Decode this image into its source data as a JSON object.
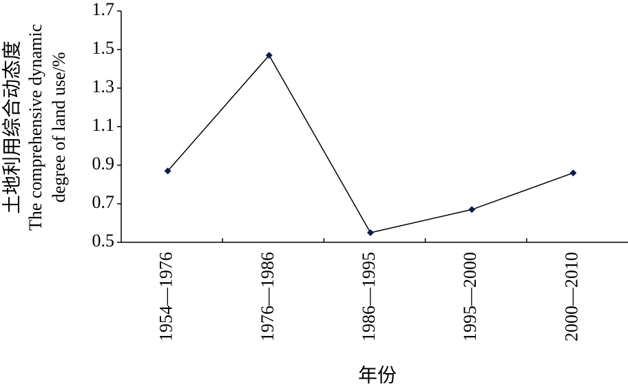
{
  "chart_data": {
    "type": "line",
    "ylabel": [
      "土地利用综合动态度",
      "The comprehensive dynamic",
      "degree of land use/%"
    ],
    "xlabel": "年份",
    "categories": [
      "1954—1976",
      "1976—1986",
      "1986—1995",
      "1995—2000",
      "2000—2010"
    ],
    "series": [
      {
        "color": "#000000",
        "marker_color": "#0d1a4a",
        "values": [
          0.87,
          1.47,
          0.55,
          0.67,
          0.86
        ]
      }
    ],
    "ylim": [
      0.5,
      1.7
    ],
    "yticks": [
      0.5,
      0.7,
      0.9,
      1.1,
      1.3,
      1.5,
      1.7
    ],
    "grid": false
  }
}
